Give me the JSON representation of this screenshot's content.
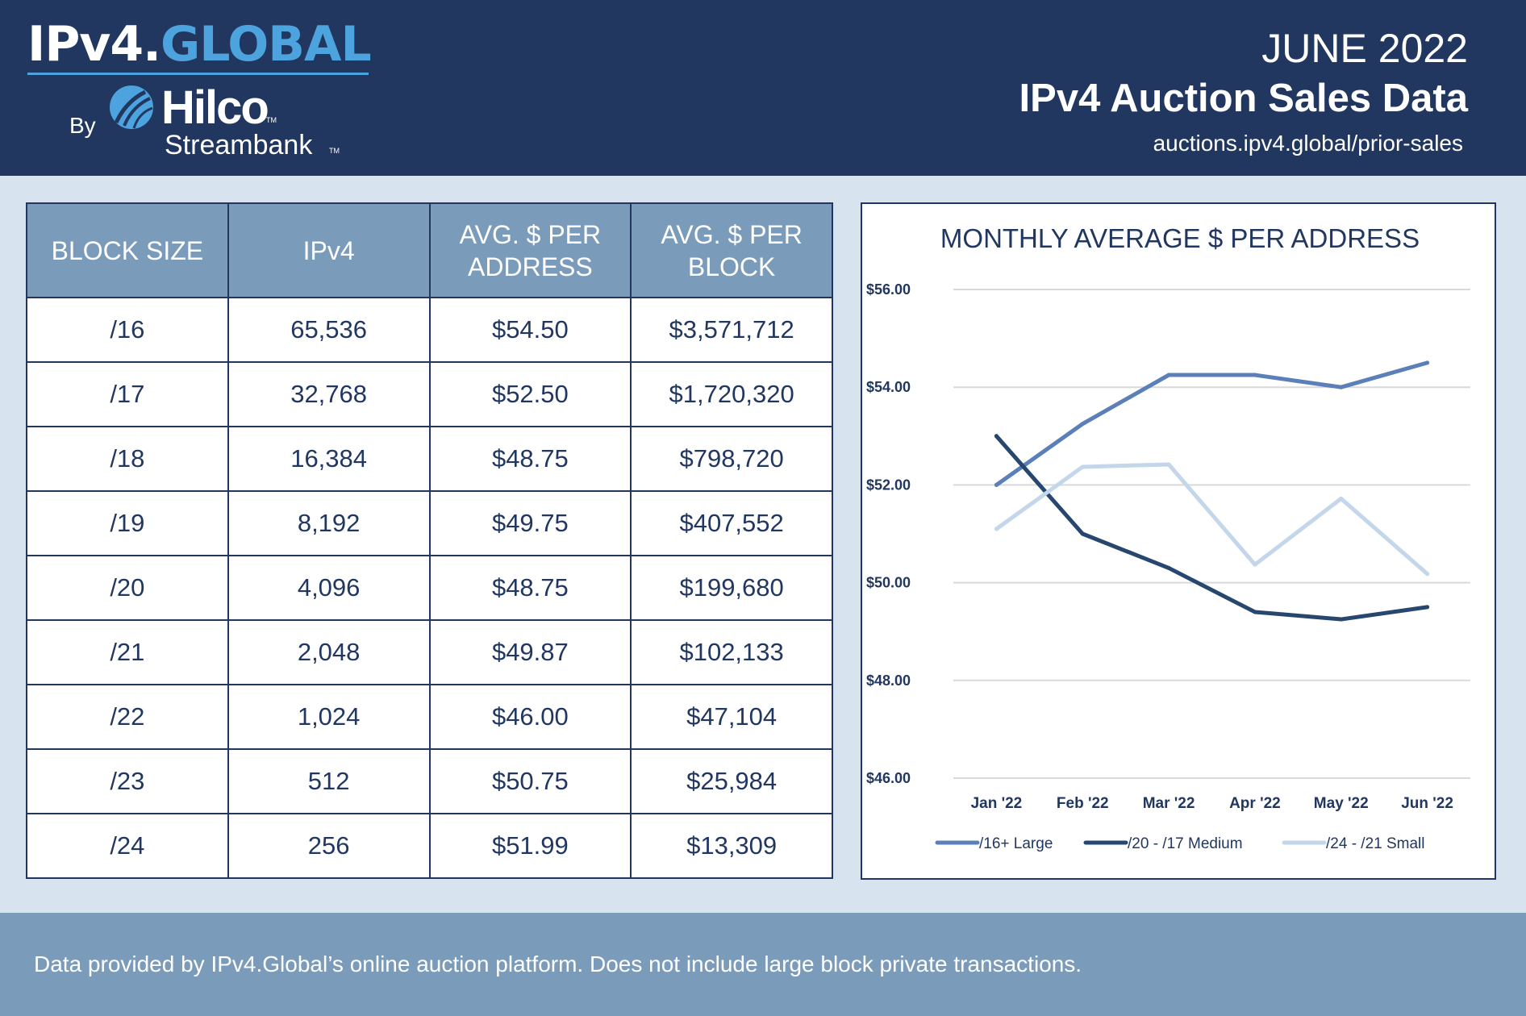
{
  "header": {
    "logo": {
      "part1": "IPv4.",
      "part2": "GLOBAL",
      "by": "By",
      "company": "Hilco",
      "company_sub": "Streambank",
      "tm": "TM"
    },
    "month": "JUNE 2022",
    "title": "IPv4 Auction Sales Data",
    "url": "auctions.ipv4.global/prior-sales"
  },
  "table": {
    "headers": [
      "BLOCK SIZE",
      "IPv4",
      "AVG. $ PER ADDRESS",
      "AVG. $ PER BLOCK"
    ],
    "rows": [
      [
        "/16",
        "65,536",
        "$54.50",
        "$3,571,712"
      ],
      [
        "/17",
        "32,768",
        "$52.50",
        "$1,720,320"
      ],
      [
        "/18",
        "16,384",
        "$48.75",
        "$798,720"
      ],
      [
        "/19",
        "8,192",
        "$49.75",
        "$407,552"
      ],
      [
        "/20",
        "4,096",
        "$48.75",
        "$199,680"
      ],
      [
        "/21",
        "2,048",
        "$49.87",
        "$102,133"
      ],
      [
        "/22",
        "1,024",
        "$46.00",
        "$47,104"
      ],
      [
        "/23",
        "512",
        "$50.75",
        "$25,984"
      ],
      [
        "/24",
        "256",
        "$51.99",
        "$13,309"
      ]
    ]
  },
  "chart_data": {
    "type": "line",
    "title": "MONTHLY AVERAGE $ PER ADDRESS",
    "x": [
      "Jan '22",
      "Feb '22",
      "Mar '22",
      "Apr '22",
      "May '22",
      "Jun '22"
    ],
    "y_ticks": [
      "$46.00",
      "$48.00",
      "$50.00",
      "$52.00",
      "$54.00",
      "$56.00"
    ],
    "ylim": [
      46,
      56
    ],
    "grid": true,
    "legend_position": "bottom",
    "series": [
      {
        "name": "/16+ Large",
        "color": "#5b7fb8",
        "values": [
          52.0,
          53.25,
          54.25,
          54.25,
          54.0,
          54.5
        ]
      },
      {
        "name": "/20 - /17 Medium",
        "color": "#27476f",
        "values": [
          53.0,
          51.0,
          50.3,
          49.4,
          49.25,
          49.5
        ]
      },
      {
        "name": "/24 - /21 Small",
        "color": "#c3d6ea",
        "values": [
          51.1,
          52.37,
          52.42,
          50.37,
          51.72,
          50.18
        ]
      }
    ]
  },
  "footer": {
    "text": "Data provided by IPv4.Global’s online auction platform. Does not include large block private transactions."
  }
}
